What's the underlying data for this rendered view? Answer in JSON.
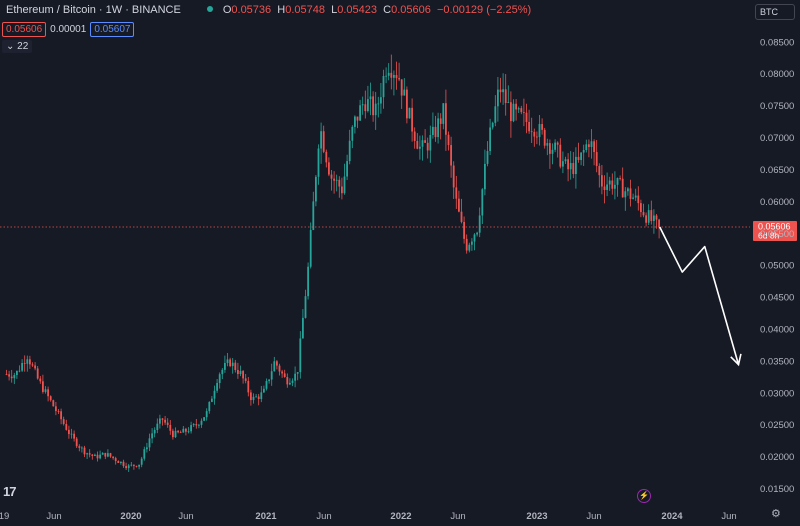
{
  "header": {
    "symbol": "Ethereum / Bitcoin · 1W · BINANCE",
    "o_label": "O",
    "o_value": "0.05736",
    "h_label": "H",
    "h_value": "0.05748",
    "l_label": "L",
    "l_value": "0.05423",
    "c_label": "C",
    "c_value": "0.05606",
    "change": "−0.00129 (−2.25%)"
  },
  "quote": {
    "bid": "0.05606",
    "spread": "0.00001",
    "ask": "0.05607"
  },
  "indicator_count": "22",
  "currency_button": "BTC",
  "price_label": {
    "value": "0.05606",
    "countdown": "6d 8h"
  },
  "colors": {
    "up": "#26a69a",
    "down": "#ef5350",
    "background": "#161a25",
    "accent": "#2962ff"
  },
  "icons": [
    "tradingview-logo-icon",
    "flash-icon",
    "gear-icon",
    "eye-icon"
  ],
  "chart_data": {
    "type": "candlestick",
    "interval": "1W",
    "ylim": [
      0.0125,
      0.0885
    ],
    "y_ticks": [
      "0.08500",
      "0.08000",
      "0.07500",
      "0.07000",
      "0.06500",
      "0.06000",
      "0.05500",
      "0.05000",
      "0.04500",
      "0.04000",
      "0.03500",
      "0.03000",
      "0.02500",
      "0.02000",
      "0.01500"
    ],
    "x_ticks": [
      "19",
      "Jun",
      "2020",
      "Jun",
      "2021",
      "Jun",
      "2022",
      "Jun",
      "2023",
      "Jun",
      "2024",
      "Jun"
    ],
    "grid": false,
    "last_price": 0.05606,
    "path": [
      [
        "2019-03",
        0.033
      ],
      [
        "2019-04",
        0.036
      ],
      [
        "2019-05",
        0.032
      ],
      [
        "2019-06",
        0.029
      ],
      [
        "2019-07",
        0.026
      ],
      [
        "2019-08",
        0.023
      ],
      [
        "2019-09",
        0.021
      ],
      [
        "2019-10",
        0.02
      ],
      [
        "2019-11",
        0.0205
      ],
      [
        "2019-12",
        0.0195
      ],
      [
        "2020-01",
        0.0185
      ],
      [
        "2020-02",
        0.019
      ],
      [
        "2020-03",
        0.0235
      ],
      [
        "2020-04",
        0.026
      ],
      [
        "2020-05",
        0.0235
      ],
      [
        "2020-06",
        0.024
      ],
      [
        "2020-07",
        0.025
      ],
      [
        "2020-08",
        0.027
      ],
      [
        "2020-09",
        0.033
      ],
      [
        "2020-10",
        0.035
      ],
      [
        "2020-11",
        0.033
      ],
      [
        "2020-12",
        0.029
      ],
      [
        "2021-01",
        0.03
      ],
      [
        "2021-02",
        0.035
      ],
      [
        "2021-03",
        0.032
      ],
      [
        "2021-04",
        0.033
      ],
      [
        "2021-05",
        0.05
      ],
      [
        "2021-06",
        0.072
      ],
      [
        "2021-07",
        0.064
      ],
      [
        "2021-08",
        0.062
      ],
      [
        "2021-09",
        0.072
      ],
      [
        "2021-10",
        0.076
      ],
      [
        "2021-11",
        0.074
      ],
      [
        "2021-12",
        0.082
      ],
      [
        "2022-01",
        0.08
      ],
      [
        "2022-02",
        0.073
      ],
      [
        "2022-03",
        0.068
      ],
      [
        "2022-04",
        0.07
      ],
      [
        "2022-05",
        0.074
      ],
      [
        "2022-06",
        0.061
      ],
      [
        "2022-07",
        0.053
      ],
      [
        "2022-08",
        0.056
      ],
      [
        "2022-09",
        0.069
      ],
      [
        "2022-10",
        0.078
      ],
      [
        "2022-11",
        0.074
      ],
      [
        "2022-12",
        0.073
      ],
      [
        "2023-01",
        0.072
      ],
      [
        "2023-02",
        0.07
      ],
      [
        "2023-03",
        0.068
      ],
      [
        "2023-04",
        0.065
      ],
      [
        "2023-05",
        0.066
      ],
      [
        "2023-06",
        0.07
      ],
      [
        "2023-07",
        0.063
      ],
      [
        "2023-08",
        0.063
      ],
      [
        "2023-09",
        0.062
      ],
      [
        "2023-10",
        0.0605
      ],
      [
        "2023-11",
        0.058
      ],
      [
        "2023-12",
        0.05606
      ]
    ],
    "annotation_arrow": [
      [
        "2023-12",
        0.05606
      ],
      [
        "2024-02",
        0.049
      ],
      [
        "2024-04",
        0.053
      ],
      [
        "2024-07",
        0.0345
      ]
    ]
  }
}
